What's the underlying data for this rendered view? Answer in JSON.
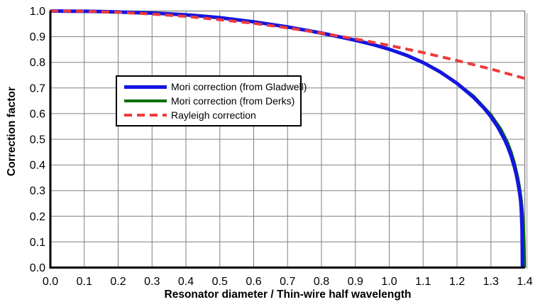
{
  "chart_data": {
    "type": "line",
    "title": "",
    "xlabel": "Resonator diameter / Thin-wire half wavelength",
    "ylabel": "Correction factor",
    "xlim": [
      0.0,
      1.4
    ],
    "ylim": [
      0.0,
      1.0
    ],
    "x_ticks": [
      "0.0",
      "0.1",
      "0.2",
      "0.3",
      "0.4",
      "0.5",
      "0.6",
      "0.7",
      "0.8",
      "0.9",
      "1.0",
      "1.1",
      "1.2",
      "1.3",
      "1.4"
    ],
    "y_ticks": [
      "1.0",
      "0.9",
      "0.8",
      "0.7",
      "0.6",
      "0.5",
      "0.4",
      "0.3",
      "0.2",
      "0.1",
      "0.0"
    ],
    "grid": true,
    "legend_position": "upper-left-inside",
    "draw_order": [
      1,
      0,
      2
    ],
    "colors": {
      "background": "#ffffff",
      "grid": "#808080",
      "border": "#808080",
      "border_shadow": "#c4c4c4",
      "axis": "#000000",
      "text": "#000000"
    },
    "series": [
      {
        "name": "Mori correction (from Gladwell)",
        "color": "#1515e0",
        "style": "solid",
        "width": 5,
        "points": [
          [
            0.0,
            1.0
          ],
          [
            0.05,
            0.9995
          ],
          [
            0.1,
            0.999
          ],
          [
            0.15,
            0.998
          ],
          [
            0.2,
            0.996
          ],
          [
            0.25,
            0.994
          ],
          [
            0.3,
            0.992
          ],
          [
            0.35,
            0.989
          ],
          [
            0.4,
            0.985
          ],
          [
            0.45,
            0.98
          ],
          [
            0.5,
            0.974
          ],
          [
            0.55,
            0.966
          ],
          [
            0.6,
            0.958
          ],
          [
            0.65,
            0.948
          ],
          [
            0.7,
            0.938
          ],
          [
            0.75,
            0.926
          ],
          [
            0.8,
            0.914
          ],
          [
            0.85,
            0.9
          ],
          [
            0.9,
            0.886
          ],
          [
            0.95,
            0.87
          ],
          [
            1.0,
            0.851
          ],
          [
            1.05,
            0.828
          ],
          [
            1.1,
            0.799
          ],
          [
            1.15,
            0.763
          ],
          [
            1.2,
            0.718
          ],
          [
            1.25,
            0.662
          ],
          [
            1.28,
            0.621
          ],
          [
            1.3,
            0.588
          ],
          [
            1.32,
            0.549
          ],
          [
            1.34,
            0.5
          ],
          [
            1.35,
            0.47
          ],
          [
            1.36,
            0.434
          ],
          [
            1.37,
            0.389
          ],
          [
            1.375,
            0.362
          ],
          [
            1.38,
            0.33
          ],
          [
            1.385,
            0.29
          ],
          [
            1.388,
            0.257
          ],
          [
            1.39,
            0.22
          ],
          [
            1.392,
            0.15
          ],
          [
            1.393,
            0.0
          ]
        ]
      },
      {
        "name": "Mori correction (from Derks)",
        "color": "#006e00",
        "style": "solid",
        "width": 3.5,
        "points": [
          [
            0.0,
            1.0
          ],
          [
            0.1,
            0.999
          ],
          [
            0.2,
            0.996
          ],
          [
            0.3,
            0.992
          ],
          [
            0.4,
            0.985
          ],
          [
            0.5,
            0.974
          ],
          [
            0.6,
            0.958
          ],
          [
            0.7,
            0.938
          ],
          [
            0.8,
            0.914
          ],
          [
            0.9,
            0.886
          ],
          [
            1.0,
            0.851
          ],
          [
            1.1,
            0.8
          ],
          [
            1.2,
            0.72
          ],
          [
            1.25,
            0.668
          ],
          [
            1.3,
            0.597
          ],
          [
            1.33,
            0.54
          ],
          [
            1.35,
            0.487
          ],
          [
            1.36,
            0.452
          ],
          [
            1.37,
            0.408
          ],
          [
            1.38,
            0.352
          ],
          [
            1.385,
            0.315
          ],
          [
            1.39,
            0.268
          ],
          [
            1.394,
            0.215
          ],
          [
            1.397,
            0.155
          ],
          [
            1.399,
            0.09
          ],
          [
            1.4,
            0.0
          ]
        ]
      },
      {
        "name": "Rayleigh correction",
        "color": "#ee3b3b",
        "style": "dashed",
        "width": 4,
        "dash": [
          11,
          7
        ],
        "points": [
          [
            0.0,
            1.0
          ],
          [
            0.1,
            0.999
          ],
          [
            0.2,
            0.995
          ],
          [
            0.3,
            0.988
          ],
          [
            0.4,
            0.979
          ],
          [
            0.5,
            0.966
          ],
          [
            0.6,
            0.952
          ],
          [
            0.7,
            0.934
          ],
          [
            0.8,
            0.914
          ],
          [
            0.9,
            0.891
          ],
          [
            1.0,
            0.866
          ],
          [
            1.1,
            0.838
          ],
          [
            1.2,
            0.807
          ],
          [
            1.3,
            0.774
          ],
          [
            1.4,
            0.737
          ]
        ]
      }
    ]
  }
}
